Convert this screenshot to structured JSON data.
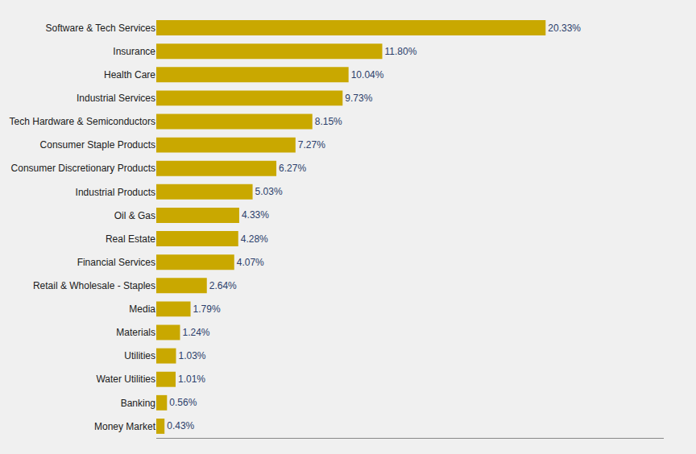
{
  "chart_data": {
    "type": "bar",
    "orientation": "horizontal",
    "categories": [
      "Software & Tech Services",
      "Insurance",
      "Health Care",
      "Industrial Services",
      "Tech Hardware & Semiconductors",
      "Consumer Staple Products",
      "Consumer Discretionary Products",
      "Industrial Products",
      "Oil & Gas",
      "Real Estate",
      "Financial Services",
      "Retail & Wholesale - Staples",
      "Media",
      "Materials",
      "Utilities",
      "Water Utilities",
      "Banking",
      "Money Market"
    ],
    "values": [
      20.33,
      11.8,
      10.04,
      9.73,
      8.15,
      7.27,
      6.27,
      5.03,
      4.33,
      4.28,
      4.07,
      2.64,
      1.79,
      1.24,
      1.03,
      1.01,
      0.56,
      0.43
    ],
    "value_labels": [
      "20.33%",
      "11.80%",
      "10.04%",
      "9.73%",
      "8.15%",
      "7.27%",
      "6.27%",
      "5.03%",
      "4.33%",
      "4.28%",
      "4.07%",
      "2.64%",
      "1.79%",
      "1.24%",
      "1.03%",
      "1.01%",
      "0.56%",
      "0.43%"
    ],
    "color": "#C9A800",
    "xlim": [
      0,
      26.5
    ],
    "data_labels": true,
    "tick_labels": "y",
    "grid": false
  }
}
